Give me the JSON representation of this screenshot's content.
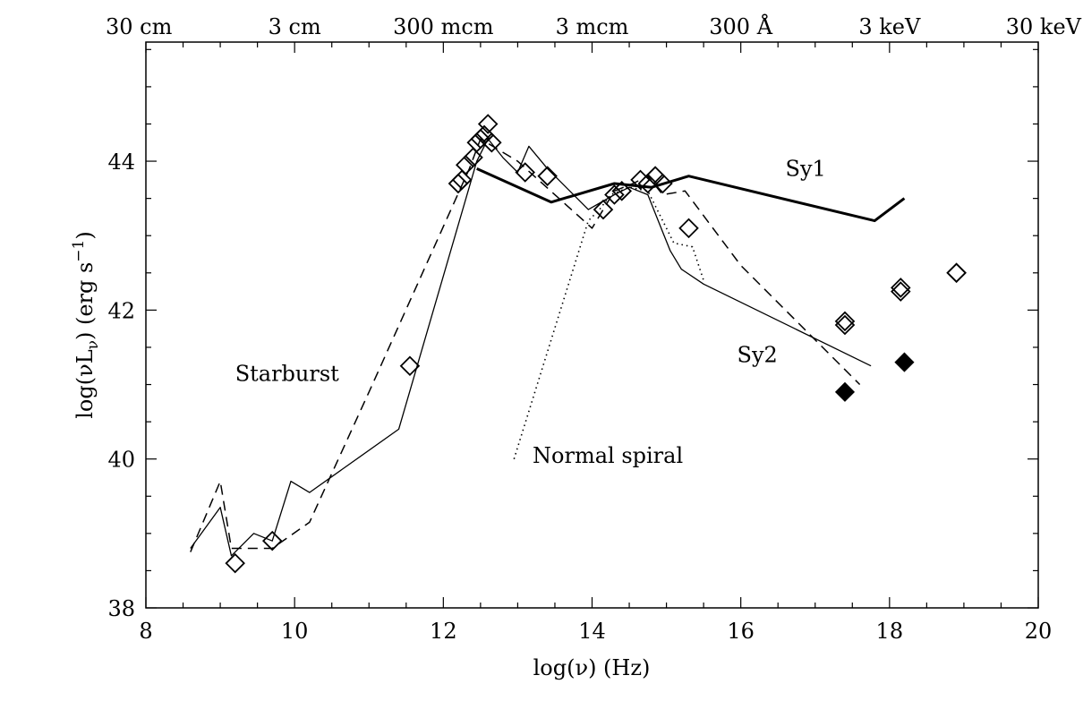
{
  "chart_data": {
    "type": "line",
    "xlabel": "log(ν) (Hz)",
    "ylabel": "log(νL_ν) (erg s^-1)",
    "xlim": [
      8,
      20
    ],
    "ylim": [
      38,
      45.6
    ],
    "x_ticks": [
      8,
      10,
      12,
      14,
      16,
      18,
      20
    ],
    "x_tick_labels": [
      "8",
      "10",
      "12",
      "14",
      "16",
      "18",
      "20"
    ],
    "y_ticks": [
      38,
      40,
      42,
      44
    ],
    "y_tick_labels": [
      "38",
      "40",
      "42",
      "44"
    ],
    "top_axis": {
      "positions": [
        8,
        10,
        12,
        14,
        16,
        18,
        20
      ],
      "labels": [
        "30 cm",
        "3 cm",
        "300 mcm",
        "3 mcm",
        "300 Å",
        "3 keV",
        "30 keV"
      ]
    },
    "grid": false,
    "series": [
      {
        "name": "Sy1",
        "style": "thick-solid",
        "label_pos": [
          16.6,
          43.8
        ],
        "points": [
          [
            12.45,
            43.9
          ],
          [
            13.45,
            43.45
          ],
          [
            14.3,
            43.7
          ],
          [
            14.8,
            43.65
          ],
          [
            15.3,
            43.8
          ],
          [
            17.8,
            43.2
          ],
          [
            18.2,
            43.5
          ]
        ]
      },
      {
        "name": "Sy2",
        "style": "thin-solid",
        "label_pos": [
          15.95,
          41.3
        ],
        "points": [
          [
            8.6,
            38.8
          ],
          [
            9.0,
            39.35
          ],
          [
            9.15,
            38.7
          ],
          [
            9.45,
            39.0
          ],
          [
            9.7,
            38.9
          ],
          [
            9.95,
            39.7
          ],
          [
            10.2,
            39.55
          ],
          [
            11.4,
            40.4
          ],
          [
            12.45,
            44.0
          ],
          [
            12.6,
            44.3
          ],
          [
            12.8,
            44.05
          ],
          [
            13.0,
            43.85
          ],
          [
            13.15,
            44.2
          ],
          [
            13.4,
            43.9
          ],
          [
            13.95,
            43.35
          ],
          [
            14.3,
            43.55
          ],
          [
            14.5,
            43.65
          ],
          [
            14.75,
            43.55
          ],
          [
            14.95,
            43.05
          ],
          [
            15.05,
            42.8
          ],
          [
            15.2,
            42.55
          ],
          [
            15.5,
            42.35
          ],
          [
            17.75,
            41.25
          ]
        ]
      },
      {
        "name": "Starburst",
        "style": "dashed",
        "label_pos": [
          9.2,
          41.05
        ],
        "points": [
          [
            8.6,
            38.75
          ],
          [
            9.0,
            39.7
          ],
          [
            9.15,
            38.8
          ],
          [
            9.7,
            38.8
          ],
          [
            10.2,
            39.15
          ],
          [
            11.0,
            40.9
          ],
          [
            12.35,
            43.9
          ],
          [
            12.5,
            44.3
          ],
          [
            13.0,
            44.0
          ],
          [
            14.0,
            43.1
          ],
          [
            14.3,
            43.6
          ],
          [
            14.55,
            43.7
          ],
          [
            14.75,
            43.8
          ],
          [
            14.95,
            43.55
          ],
          [
            15.25,
            43.6
          ],
          [
            16.0,
            42.6
          ],
          [
            17.2,
            41.4
          ],
          [
            17.6,
            41.0
          ]
        ]
      },
      {
        "name": "Normal spiral",
        "style": "dotted",
        "label_pos": [
          13.2,
          39.95
        ],
        "points": [
          [
            12.95,
            40.0
          ],
          [
            13.95,
            43.2
          ],
          [
            14.1,
            43.35
          ],
          [
            14.25,
            43.55
          ],
          [
            14.5,
            43.65
          ],
          [
            14.75,
            43.6
          ],
          [
            14.9,
            43.3
          ],
          [
            15.1,
            42.9
          ],
          [
            15.35,
            42.85
          ],
          [
            15.5,
            42.4
          ]
        ]
      }
    ],
    "open_diamonds": [
      [
        9.2,
        38.6
      ],
      [
        9.7,
        38.9
      ],
      [
        11.55,
        41.25
      ],
      [
        12.2,
        43.7
      ],
      [
        12.25,
        43.75
      ],
      [
        12.3,
        43.95
      ],
      [
        12.4,
        44.05
      ],
      [
        12.45,
        44.25
      ],
      [
        12.5,
        44.3
      ],
      [
        12.55,
        44.35
      ],
      [
        12.6,
        44.5
      ],
      [
        12.65,
        44.25
      ],
      [
        13.1,
        43.85
      ],
      [
        13.4,
        43.8
      ],
      [
        14.15,
        43.35
      ],
      [
        14.3,
        43.55
      ],
      [
        14.4,
        43.6
      ],
      [
        14.65,
        43.75
      ],
      [
        14.75,
        43.7
      ],
      [
        14.85,
        43.8
      ],
      [
        14.95,
        43.7
      ],
      [
        15.3,
        43.1
      ],
      [
        17.4,
        41.8
      ],
      [
        17.4,
        41.85
      ],
      [
        18.15,
        42.25
      ],
      [
        18.15,
        42.3
      ],
      [
        18.9,
        42.5
      ],
      [
        18.9,
        42.5
      ]
    ],
    "filled_diamonds": [
      [
        17.4,
        40.9
      ],
      [
        18.2,
        41.3
      ]
    ]
  }
}
